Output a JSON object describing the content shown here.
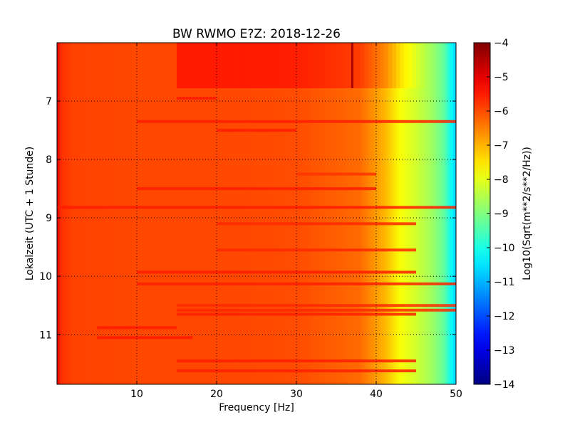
{
  "chart_data": {
    "type": "heatmap",
    "title": "BW RWMO E?Z: 2018-12-26",
    "xlabel": "Frequency [Hz]",
    "ylabel": "Lokalzeit (UTC + 1 Stunde)",
    "colorbar_label": "Log10(Sqrt(m**2/s**2/Hz))",
    "xlim": [
      0,
      50
    ],
    "ylim": [
      11.85,
      6.0
    ],
    "clim": [
      -14,
      -4
    ],
    "colormap": "jet",
    "grid": true,
    "x_ticks": [
      10,
      20,
      30,
      40,
      50
    ],
    "x_tick_labels": [
      "10",
      "20",
      "30",
      "40",
      "50"
    ],
    "y_ticks": [
      7,
      8,
      9,
      10,
      11
    ],
    "y_tick_labels": [
      "7",
      "8",
      "9",
      "10",
      "11"
    ],
    "colorbar_ticks": [
      -4,
      -5,
      -6,
      -7,
      -8,
      -9,
      -10,
      -11,
      -12,
      -13,
      -14
    ],
    "colorbar_tick_labels": [
      "−4",
      "−5",
      "−6",
      "−7",
      "−8",
      "−9",
      "−10",
      "−11",
      "−12",
      "−13",
      "−14"
    ],
    "base_spectrum": {
      "frequency_hz": [
        0,
        0.5,
        2,
        10,
        20,
        30,
        38,
        41,
        43,
        45,
        47,
        48.5,
        49.5,
        50
      ],
      "log10_amplitude": [
        -5.0,
        -5.7,
        -5.9,
        -5.95,
        -5.95,
        -6.0,
        -6.3,
        -7.0,
        -7.8,
        -8.2,
        -8.7,
        -9.3,
        -10.3,
        -10.7
      ]
    },
    "elevated_block": {
      "time_range": [
        6.0,
        6.78
      ],
      "frequency_range": [
        15,
        46
      ],
      "log10_amplitude_offset": 0.45
    },
    "spectral_line": {
      "frequency_hz": 37,
      "time_range": [
        6.0,
        6.78
      ],
      "log10_amplitude": -4.4
    },
    "noise_bands": [
      {
        "time": 6.95,
        "frequency_range": [
          15,
          20
        ]
      },
      {
        "time": 7.35,
        "frequency_range": [
          10,
          50
        ]
      },
      {
        "time": 7.5,
        "frequency_range": [
          20,
          30
        ]
      },
      {
        "time": 8.25,
        "frequency_range": [
          30,
          40
        ]
      },
      {
        "time": 8.5,
        "frequency_range": [
          10,
          40
        ]
      },
      {
        "time": 8.82,
        "frequency_range": [
          0,
          50
        ]
      },
      {
        "time": 9.1,
        "frequency_range": [
          20,
          45
        ]
      },
      {
        "time": 9.55,
        "frequency_range": [
          20,
          45
        ]
      },
      {
        "time": 9.93,
        "frequency_range": [
          10,
          45
        ]
      },
      {
        "time": 10.13,
        "frequency_range": [
          10,
          50
        ]
      },
      {
        "time": 10.5,
        "frequency_range": [
          15,
          50
        ]
      },
      {
        "time": 10.58,
        "frequency_range": [
          15,
          50
        ]
      },
      {
        "time": 10.65,
        "frequency_range": [
          15,
          45
        ]
      },
      {
        "time": 10.88,
        "frequency_range": [
          5,
          15
        ]
      },
      {
        "time": 11.05,
        "frequency_range": [
          5,
          17
        ]
      },
      {
        "time": 11.45,
        "frequency_range": [
          15,
          45
        ]
      },
      {
        "time": 11.62,
        "frequency_range": [
          15,
          45
        ]
      }
    ]
  }
}
